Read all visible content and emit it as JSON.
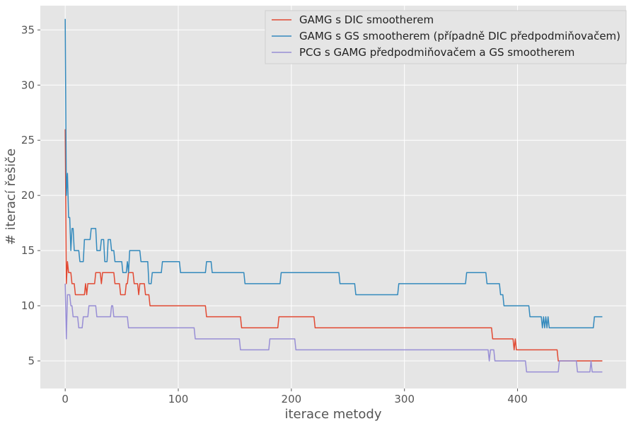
{
  "chart_data": {
    "type": "line",
    "xlabel": "iterace metody",
    "ylabel": "# iterací řešiče",
    "xlim": [
      -22,
      496
    ],
    "ylim": [
      2.5,
      37.2
    ],
    "xticks": [
      0,
      100,
      200,
      300,
      400
    ],
    "yticks": [
      5,
      10,
      15,
      20,
      25,
      30,
      35
    ],
    "grid": true,
    "legend_position": "top-right",
    "colors": {
      "background": "#e5e5e5",
      "grid": "#ffffff",
      "tick_text": "#555555"
    },
    "series": [
      {
        "name": "GAMG s DIC smootherem",
        "color": "#e24a33",
        "points": [
          [
            0,
            26
          ],
          [
            1,
            12
          ],
          [
            2,
            14
          ],
          [
            3,
            13
          ],
          [
            5,
            13
          ],
          [
            6,
            12
          ],
          [
            8,
            12
          ],
          [
            9,
            11
          ],
          [
            17,
            11
          ],
          [
            18,
            12
          ],
          [
            19,
            11
          ],
          [
            20,
            12
          ],
          [
            26,
            12
          ],
          [
            27,
            13
          ],
          [
            31,
            13
          ],
          [
            32,
            12
          ],
          [
            33,
            13
          ],
          [
            43,
            13
          ],
          [
            44,
            12
          ],
          [
            48,
            12
          ],
          [
            49,
            11
          ],
          [
            53,
            11
          ],
          [
            54,
            12
          ],
          [
            55,
            12
          ],
          [
            56,
            13
          ],
          [
            60,
            13
          ],
          [
            61,
            12
          ],
          [
            64,
            12
          ],
          [
            65,
            11
          ],
          [
            66,
            12
          ],
          [
            70,
            12
          ],
          [
            71,
            11
          ],
          [
            74,
            11
          ],
          [
            75,
            10
          ],
          [
            124,
            10
          ],
          [
            125,
            9
          ],
          [
            155,
            9
          ],
          [
            156,
            8
          ],
          [
            188,
            8
          ],
          [
            189,
            9
          ],
          [
            220,
            9
          ],
          [
            221,
            8
          ],
          [
            377,
            8
          ],
          [
            378,
            7
          ],
          [
            396,
            7
          ],
          [
            397,
            6
          ],
          [
            398,
            7
          ],
          [
            399,
            6
          ],
          [
            435,
            6
          ],
          [
            436,
            5
          ],
          [
            475,
            5
          ]
        ]
      },
      {
        "name": "GAMG s GS smootherem (případně DIC předpodmiňovačem)",
        "color": "#348abd",
        "points": [
          [
            0,
            36
          ],
          [
            1,
            20
          ],
          [
            2,
            22
          ],
          [
            3,
            18
          ],
          [
            4,
            18
          ],
          [
            5,
            15
          ],
          [
            6,
            17
          ],
          [
            7,
            17
          ],
          [
            8,
            15
          ],
          [
            12,
            15
          ],
          [
            13,
            14
          ],
          [
            16,
            14
          ],
          [
            17,
            16
          ],
          [
            22,
            16
          ],
          [
            23,
            17
          ],
          [
            27,
            17
          ],
          [
            28,
            15
          ],
          [
            31,
            15
          ],
          [
            32,
            16
          ],
          [
            34,
            16
          ],
          [
            35,
            14
          ],
          [
            37,
            14
          ],
          [
            38,
            16
          ],
          [
            40,
            16
          ],
          [
            41,
            15
          ],
          [
            43,
            15
          ],
          [
            44,
            14
          ],
          [
            50,
            14
          ],
          [
            51,
            13
          ],
          [
            54,
            13
          ],
          [
            55,
            14
          ],
          [
            56,
            13
          ],
          [
            57,
            15
          ],
          [
            66,
            15
          ],
          [
            67,
            14
          ],
          [
            73,
            14
          ],
          [
            74,
            12
          ],
          [
            76,
            12
          ],
          [
            77,
            13
          ],
          [
            85,
            13
          ],
          [
            86,
            14
          ],
          [
            101,
            14
          ],
          [
            102,
            13
          ],
          [
            124,
            13
          ],
          [
            125,
            14
          ],
          [
            129,
            14
          ],
          [
            130,
            13
          ],
          [
            158,
            13
          ],
          [
            159,
            12
          ],
          [
            190,
            12
          ],
          [
            191,
            13
          ],
          [
            242,
            13
          ],
          [
            243,
            12
          ],
          [
            256,
            12
          ],
          [
            257,
            11
          ],
          [
            294,
            11
          ],
          [
            295,
            12
          ],
          [
            354,
            12
          ],
          [
            355,
            13
          ],
          [
            372,
            13
          ],
          [
            373,
            12
          ],
          [
            384,
            12
          ],
          [
            385,
            11
          ],
          [
            387,
            11
          ],
          [
            388,
            10
          ],
          [
            410,
            10
          ],
          [
            411,
            9
          ],
          [
            421,
            9
          ],
          [
            422,
            8
          ],
          [
            423,
            9
          ],
          [
            424,
            8
          ],
          [
            425,
            9
          ],
          [
            426,
            8
          ],
          [
            427,
            9
          ],
          [
            428,
            8
          ],
          [
            467,
            8
          ],
          [
            468,
            9
          ],
          [
            475,
            9
          ]
        ]
      },
      {
        "name": "PCG s GAMG předpodmiňovačem a GS smootherem",
        "color": "#988ed5",
        "points": [
          [
            0,
            12
          ],
          [
            1,
            7
          ],
          [
            2,
            11
          ],
          [
            4,
            11
          ],
          [
            5,
            10
          ],
          [
            6,
            10
          ],
          [
            7,
            9
          ],
          [
            11,
            9
          ],
          [
            12,
            8
          ],
          [
            15,
            8
          ],
          [
            16,
            9
          ],
          [
            20,
            9
          ],
          [
            21,
            10
          ],
          [
            27,
            10
          ],
          [
            28,
            9
          ],
          [
            40,
            9
          ],
          [
            41,
            10
          ],
          [
            42,
            10
          ],
          [
            43,
            9
          ],
          [
            55,
            9
          ],
          [
            56,
            8
          ],
          [
            114,
            8
          ],
          [
            115,
            7
          ],
          [
            154,
            7
          ],
          [
            155,
            6
          ],
          [
            180,
            6
          ],
          [
            181,
            7
          ],
          [
            203,
            7
          ],
          [
            204,
            6
          ],
          [
            374,
            6
          ],
          [
            375,
            5
          ],
          [
            376,
            6
          ],
          [
            379,
            6
          ],
          [
            380,
            5
          ],
          [
            407,
            5
          ],
          [
            408,
            4
          ],
          [
            436,
            4
          ],
          [
            437,
            5
          ],
          [
            452,
            5
          ],
          [
            453,
            4
          ],
          [
            464,
            4
          ],
          [
            465,
            5
          ],
          [
            466,
            4
          ],
          [
            475,
            4
          ]
        ]
      }
    ]
  }
}
